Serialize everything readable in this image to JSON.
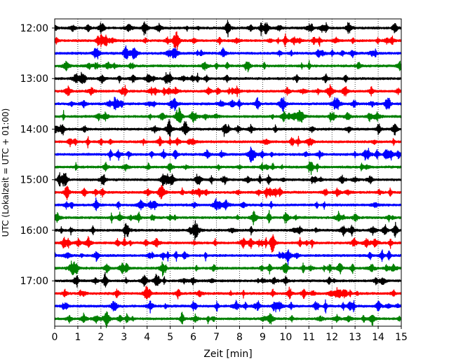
{
  "chart_data": {
    "type": "line",
    "title": "",
    "xlabel": "Zeit  [min]",
    "ylabel": "UTC (Lokalzeit = UTC + 01:00)",
    "xlim": [
      0,
      15
    ],
    "x_ticks": [
      "0",
      "1",
      "2",
      "3",
      "4",
      "5",
      "6",
      "7",
      "8",
      "9",
      "10",
      "11",
      "12",
      "13",
      "14",
      "15"
    ],
    "y_ticks": [
      "12:00",
      "13:00",
      "14:00",
      "15:00",
      "16:00",
      "17:00"
    ],
    "grid": "vertical dotted",
    "trace_interval_min": 15,
    "trace_colors_cycle": [
      "#000000",
      "#ff0000",
      "#0000ff",
      "#008000"
    ],
    "traces": [
      {
        "start": "12:00",
        "color": "#000000"
      },
      {
        "start": "12:15",
        "color": "#ff0000"
      },
      {
        "start": "12:30",
        "color": "#0000ff"
      },
      {
        "start": "12:45",
        "color": "#008000"
      },
      {
        "start": "13:00",
        "color": "#000000"
      },
      {
        "start": "13:15",
        "color": "#ff0000"
      },
      {
        "start": "13:30",
        "color": "#0000ff"
      },
      {
        "start": "13:45",
        "color": "#008000"
      },
      {
        "start": "14:00",
        "color": "#000000"
      },
      {
        "start": "14:15",
        "color": "#ff0000"
      },
      {
        "start": "14:30",
        "color": "#0000ff"
      },
      {
        "start": "14:45",
        "color": "#008000"
      },
      {
        "start": "15:00",
        "color": "#000000"
      },
      {
        "start": "15:15",
        "color": "#ff0000"
      },
      {
        "start": "15:30",
        "color": "#0000ff"
      },
      {
        "start": "15:45",
        "color": "#008000"
      },
      {
        "start": "16:00",
        "color": "#000000"
      },
      {
        "start": "16:15",
        "color": "#ff0000"
      },
      {
        "start": "16:30",
        "color": "#0000ff"
      },
      {
        "start": "16:45",
        "color": "#008000"
      },
      {
        "start": "17:00",
        "color": "#000000"
      },
      {
        "start": "17:15",
        "color": "#ff0000"
      },
      {
        "start": "17:30",
        "color": "#0000ff"
      },
      {
        "start": "17:45",
        "color": "#008000"
      }
    ]
  }
}
